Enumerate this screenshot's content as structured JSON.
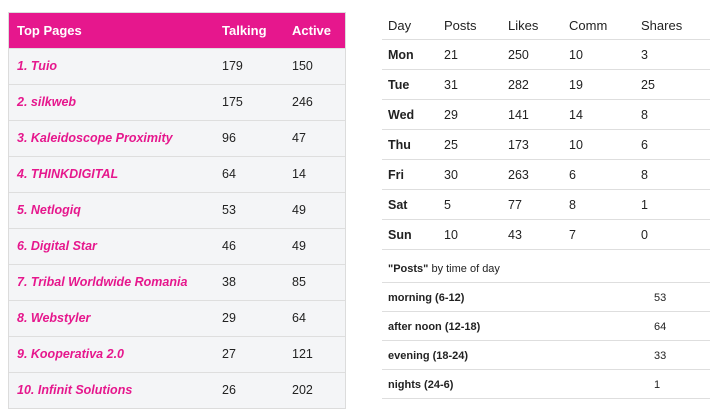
{
  "top_pages": {
    "header": {
      "page": "Top Pages",
      "talking": "Talking",
      "active": "Active"
    },
    "rows": [
      {
        "page": "1. Tuio",
        "talking": "179",
        "active": "150"
      },
      {
        "page": "2. silkweb",
        "talking": "175",
        "active": "246"
      },
      {
        "page": "3. Kaleidoscope Proximity",
        "talking": "96",
        "active": "47"
      },
      {
        "page": "4. THINKDIGITAL",
        "talking": "64",
        "active": "14"
      },
      {
        "page": "5. Netlogiq",
        "talking": "53",
        "active": "49"
      },
      {
        "page": "6. Digital Star",
        "talking": "46",
        "active": "49"
      },
      {
        "page": "7. Tribal Worldwide Romania",
        "talking": "38",
        "active": "85"
      },
      {
        "page": "8. Webstyler",
        "talking": "29",
        "active": "64"
      },
      {
        "page": "9. Kooperativa 2.0",
        "talking": "27",
        "active": "121"
      },
      {
        "page": "10. Infinit Solutions",
        "talking": "26",
        "active": "202"
      }
    ]
  },
  "weekly": {
    "header": {
      "day": "Day",
      "posts": "Posts",
      "likes": "Likes",
      "comm": "Comm",
      "shares": "Shares"
    },
    "rows": [
      {
        "day": "Mon",
        "posts": "21",
        "likes": "250",
        "comm": "10",
        "shares": "3"
      },
      {
        "day": "Tue",
        "posts": "31",
        "likes": "282",
        "comm": "19",
        "shares": "25"
      },
      {
        "day": "Wed",
        "posts": "29",
        "likes": "141",
        "comm": "14",
        "shares": "8"
      },
      {
        "day": "Thu",
        "posts": "25",
        "likes": "173",
        "comm": "10",
        "shares": "6"
      },
      {
        "day": "Fri",
        "posts": "30",
        "likes": "263",
        "comm": "6",
        "shares": "8"
      },
      {
        "day": "Sat",
        "posts": "5",
        "likes": "77",
        "comm": "8",
        "shares": "1"
      },
      {
        "day": "Sun",
        "posts": "10",
        "likes": "43",
        "comm": "7",
        "shares": "0"
      }
    ]
  },
  "time_of_day": {
    "title_quoted": "\"Posts\"",
    "title_rest": " by time of day",
    "rows": [
      {
        "label": "morning (6-12)",
        "value": "53"
      },
      {
        "label": "after noon (12-18)",
        "value": "64"
      },
      {
        "label": "evening (18-24)",
        "value": "33"
      },
      {
        "label": "nights (24-6)",
        "value": "1"
      }
    ]
  },
  "colors": {
    "accent": "#e6178d",
    "row_bg": "#f4f5f7",
    "border": "#dedede"
  }
}
